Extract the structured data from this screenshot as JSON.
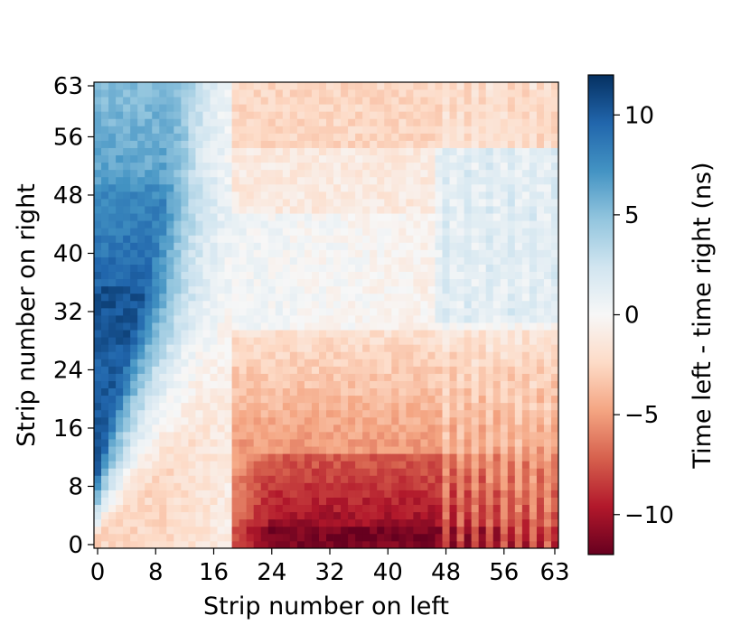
{
  "chart_data": {
    "type": "heatmap",
    "title": "",
    "xlabel": "Strip number on left",
    "ylabel": "Strip number on right",
    "x_ticks": [
      0,
      8,
      16,
      24,
      32,
      40,
      48,
      56,
      63
    ],
    "y_ticks": [
      0,
      8,
      16,
      24,
      32,
      40,
      48,
      56,
      63
    ],
    "x_range": [
      0,
      63
    ],
    "y_range": [
      0,
      63
    ],
    "grid_size": 64,
    "colorbar": {
      "label": "Time left - time right (ns)",
      "range": [
        -12,
        12
      ],
      "ticks": [
        10,
        5,
        0,
        -5,
        -10
      ],
      "tick_labels": [
        "10",
        "5",
        "0",
        "−5",
        "−10"
      ],
      "colormap": "RdBu",
      "colors": [
        "#67001f",
        "#b2182b",
        "#d6604d",
        "#f4a582",
        "#fddbc7",
        "#f7f7f7",
        "#d1e5f0",
        "#92c5de",
        "#4393c3",
        "#2166ac",
        "#053061"
      ]
    },
    "approx_values": {
      "description_rows": "y = strip on right, columns x = strip on left",
      "region_samples": [
        {
          "x": 4,
          "y": 36,
          "value": 10
        },
        {
          "x": 4,
          "y": 58,
          "value": 7
        },
        {
          "x": 12,
          "y": 44,
          "value": 7
        },
        {
          "x": 20,
          "y": 40,
          "value": 1
        },
        {
          "x": 32,
          "y": 56,
          "value": -2
        },
        {
          "x": 48,
          "y": 40,
          "value": 0
        },
        {
          "x": 40,
          "y": 6,
          "value": -10
        },
        {
          "x": 36,
          "y": 1,
          "value": -11
        },
        {
          "x": 56,
          "y": 10,
          "value": -6
        },
        {
          "x": 2,
          "y": 2,
          "value": -2
        },
        {
          "x": 10,
          "y": 14,
          "value": 1
        }
      ]
    }
  }
}
